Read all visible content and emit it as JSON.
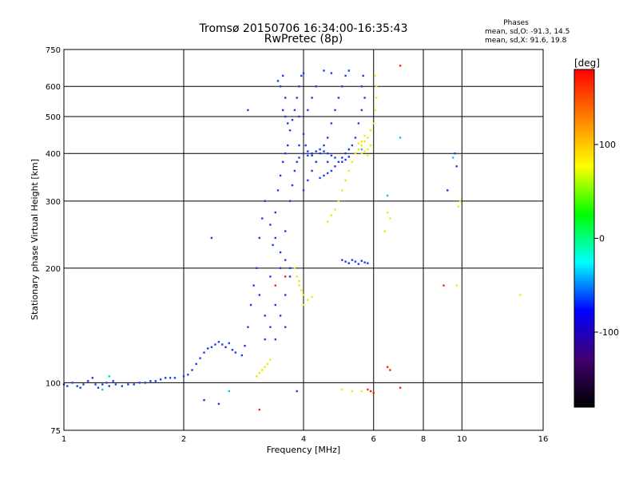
{
  "chart_data": {
    "type": "scatter",
    "title": "Tromsø 20150706 16:34:00-16:35:43",
    "subtitle": "RwPretec (8p)",
    "xlabel": "Frequency [MHz]",
    "ylabel": "Stationary phase Virtual Height [km]",
    "x_scale": "log",
    "y_scale": "log",
    "xlim": [
      1,
      16
    ],
    "ylim": [
      75,
      750
    ],
    "grid": true,
    "x_ticks": [
      1,
      2,
      4,
      6,
      8,
      10,
      16
    ],
    "y_ticks": [
      75,
      100,
      200,
      300,
      400,
      500,
      600,
      750
    ],
    "x_grid": [
      2,
      4,
      6,
      8,
      10
    ],
    "y_grid": [
      100,
      200,
      300,
      400,
      500,
      600
    ],
    "phase_stats": {
      "heading": "Phases",
      "o_line": "mean, sd,O: -91.3, 14.5",
      "x_line": "mean, sd,X:  91.6, 19.8"
    },
    "colorbar": {
      "label": "[deg]",
      "range": [
        -180,
        180
      ],
      "ticks": [
        100,
        0,
        -100
      ],
      "colors": [
        "#ff0000",
        "#ff8000",
        "#ffff00",
        "#00ff00",
        "#00ffff",
        "#0000ff",
        "#400070",
        "#000000"
      ]
    },
    "series": [
      {
        "phase": -91.3,
        "color": "#1a3cf0",
        "points": [
          [
            1.0,
            99
          ],
          [
            1.02,
            98
          ],
          [
            1.05,
            100
          ],
          [
            1.08,
            98
          ],
          [
            1.1,
            97
          ],
          [
            1.12,
            99
          ],
          [
            1.15,
            101
          ],
          [
            1.18,
            103
          ],
          [
            1.2,
            99
          ],
          [
            1.22,
            97
          ],
          [
            1.25,
            99
          ],
          [
            1.28,
            100
          ],
          [
            1.3,
            98
          ],
          [
            1.33,
            101
          ],
          [
            1.35,
            99
          ],
          [
            1.4,
            98
          ],
          [
            1.45,
            99
          ],
          [
            1.5,
            99
          ],
          [
            1.55,
            100
          ],
          [
            1.6,
            100
          ],
          [
            1.65,
            101
          ],
          [
            1.7,
            101
          ],
          [
            1.75,
            102
          ],
          [
            1.8,
            103
          ],
          [
            1.85,
            103
          ],
          [
            1.9,
            103
          ],
          [
            2.0,
            104
          ],
          [
            2.05,
            105
          ],
          [
            2.1,
            108
          ],
          [
            2.15,
            112
          ],
          [
            2.2,
            116
          ],
          [
            2.25,
            120
          ],
          [
            2.3,
            123
          ],
          [
            2.35,
            124
          ],
          [
            2.4,
            126
          ],
          [
            2.45,
            128
          ],
          [
            2.5,
            126
          ],
          [
            2.55,
            124
          ],
          [
            2.6,
            127
          ],
          [
            2.65,
            122
          ],
          [
            2.7,
            120
          ],
          [
            2.8,
            118
          ],
          [
            2.85,
            125
          ],
          [
            2.9,
            140
          ],
          [
            2.95,
            160
          ],
          [
            3.0,
            180
          ],
          [
            3.05,
            200
          ],
          [
            3.1,
            240
          ],
          [
            3.15,
            270
          ],
          [
            3.2,
            300
          ],
          [
            3.1,
            170
          ],
          [
            3.2,
            150
          ],
          [
            3.3,
            190
          ],
          [
            3.35,
            230
          ],
          [
            3.4,
            280
          ],
          [
            3.45,
            320
          ],
          [
            3.5,
            350
          ],
          [
            3.55,
            380
          ],
          [
            3.6,
            400
          ],
          [
            3.65,
            420
          ],
          [
            3.2,
            130
          ],
          [
            3.3,
            140
          ],
          [
            3.4,
            160
          ],
          [
            3.5,
            200
          ],
          [
            3.6,
            250
          ],
          [
            3.7,
            300
          ],
          [
            3.75,
            330
          ],
          [
            3.8,
            360
          ],
          [
            3.85,
            380
          ],
          [
            3.9,
            390
          ],
          [
            3.3,
            260
          ],
          [
            3.4,
            240
          ],
          [
            3.5,
            220
          ],
          [
            3.6,
            210
          ],
          [
            3.7,
            200
          ],
          [
            3.5,
            150
          ],
          [
            3.6,
            170
          ],
          [
            3.7,
            190
          ],
          [
            3.4,
            130
          ],
          [
            3.6,
            140
          ],
          [
            3.55,
            520
          ],
          [
            3.6,
            500
          ],
          [
            3.65,
            480
          ],
          [
            3.7,
            460
          ],
          [
            3.75,
            490
          ],
          [
            3.8,
            520
          ],
          [
            3.85,
            560
          ],
          [
            3.9,
            600
          ],
          [
            3.95,
            640
          ],
          [
            4.0,
            650
          ],
          [
            3.5,
            600
          ],
          [
            3.55,
            640
          ],
          [
            3.45,
            620
          ],
          [
            3.6,
            560
          ],
          [
            3.9,
            500
          ],
          [
            4.0,
            450
          ],
          [
            4.05,
            420
          ],
          [
            4.1,
            405
          ],
          [
            4.2,
            395
          ],
          [
            4.3,
            380
          ],
          [
            3.9,
            420
          ],
          [
            4.0,
            400
          ],
          [
            4.1,
            395
          ],
          [
            4.2,
            400
          ],
          [
            4.3,
            405
          ],
          [
            4.4,
            410
          ],
          [
            4.5,
            405
          ],
          [
            4.6,
            400
          ],
          [
            4.7,
            395
          ],
          [
            4.8,
            390
          ],
          [
            4.0,
            320
          ],
          [
            4.1,
            340
          ],
          [
            4.2,
            360
          ],
          [
            4.3,
            380
          ],
          [
            4.4,
            400
          ],
          [
            4.5,
            420
          ],
          [
            4.6,
            440
          ],
          [
            4.7,
            480
          ],
          [
            4.8,
            520
          ],
          [
            4.9,
            560
          ],
          [
            5.0,
            600
          ],
          [
            5.1,
            640
          ],
          [
            5.2,
            660
          ],
          [
            4.5,
            660
          ],
          [
            4.7,
            650
          ],
          [
            4.3,
            600
          ],
          [
            4.2,
            560
          ],
          [
            4.1,
            520
          ],
          [
            4.6,
            380
          ],
          [
            4.8,
            370
          ],
          [
            5.0,
            380
          ],
          [
            5.1,
            400
          ],
          [
            5.2,
            410
          ],
          [
            5.3,
            420
          ],
          [
            5.4,
            440
          ],
          [
            5.5,
            480
          ],
          [
            5.6,
            520
          ],
          [
            5.7,
            560
          ],
          [
            5.6,
            600
          ],
          [
            5.65,
            640
          ],
          [
            4.9,
            380
          ],
          [
            5.0,
            390
          ],
          [
            5.1,
            385
          ],
          [
            5.2,
            392
          ],
          [
            4.4,
            345
          ],
          [
            4.5,
            350
          ],
          [
            4.6,
            355
          ],
          [
            4.7,
            360
          ],
          [
            5.0,
            210
          ],
          [
            5.1,
            208
          ],
          [
            5.2,
            206
          ],
          [
            5.3,
            210
          ],
          [
            5.4,
            208
          ],
          [
            5.5,
            205
          ],
          [
            5.6,
            209
          ],
          [
            5.7,
            207
          ],
          [
            5.8,
            206
          ],
          [
            2.35,
            240
          ],
          [
            2.25,
            90
          ],
          [
            2.45,
            88
          ],
          [
            2.9,
            520
          ],
          [
            3.85,
            95
          ],
          [
            9.2,
            320
          ],
          [
            9.6,
            400
          ],
          [
            9.7,
            370
          ]
        ]
      },
      {
        "phase": 91.6,
        "color": "#f2e800",
        "points": [
          [
            3.05,
            104
          ],
          [
            3.1,
            106
          ],
          [
            3.15,
            108
          ],
          [
            3.2,
            110
          ],
          [
            3.25,
            112
          ],
          [
            3.3,
            115
          ],
          [
            3.8,
            200
          ],
          [
            3.85,
            190
          ],
          [
            3.9,
            180
          ],
          [
            3.95,
            175
          ],
          [
            4.0,
            170
          ],
          [
            4.1,
            165
          ],
          [
            4.2,
            168
          ],
          [
            4.0,
            160
          ],
          [
            3.9,
            185
          ],
          [
            4.6,
            265
          ],
          [
            4.7,
            275
          ],
          [
            4.8,
            285
          ],
          [
            4.9,
            300
          ],
          [
            5.0,
            320
          ],
          [
            5.1,
            340
          ],
          [
            5.2,
            360
          ],
          [
            5.3,
            380
          ],
          [
            5.4,
            400
          ],
          [
            5.5,
            410
          ],
          [
            5.6,
            420
          ],
          [
            5.7,
            430
          ],
          [
            5.8,
            440
          ],
          [
            5.9,
            460
          ],
          [
            6.0,
            480
          ],
          [
            6.05,
            520
          ],
          [
            6.1,
            560
          ],
          [
            6.1,
            600
          ],
          [
            6.05,
            640
          ],
          [
            5.6,
            400
          ],
          [
            5.7,
            405
          ],
          [
            5.8,
            410
          ],
          [
            5.9,
            420
          ],
          [
            5.6,
            430
          ],
          [
            5.7,
            445
          ],
          [
            5.5,
            425
          ],
          [
            5.8,
            395
          ],
          [
            6.5,
            280
          ],
          [
            6.6,
            270
          ],
          [
            6.4,
            250
          ],
          [
            5.0,
            96
          ],
          [
            5.3,
            95
          ],
          [
            5.6,
            95
          ],
          [
            9.8,
            290
          ],
          [
            9.9,
            300
          ],
          [
            9.7,
            180
          ],
          [
            14.0,
            170
          ]
        ]
      },
      {
        "phase": 170.0,
        "color": "#ff2200",
        "points": [
          [
            3.4,
            180
          ],
          [
            3.6,
            190
          ],
          [
            5.8,
            96
          ],
          [
            5.9,
            95
          ],
          [
            6.0,
            94
          ],
          [
            6.5,
            110
          ],
          [
            6.6,
            108
          ],
          [
            7.0,
            97
          ],
          [
            7.0,
            680
          ],
          [
            9.0,
            180
          ],
          [
            3.1,
            85
          ]
        ]
      },
      {
        "phase": -20.0,
        "color": "#00c8ff",
        "points": [
          [
            1.25,
            96
          ],
          [
            1.3,
            104
          ],
          [
            2.6,
            95
          ],
          [
            5.6,
            410
          ],
          [
            7.0,
            440
          ],
          [
            9.5,
            390
          ],
          [
            6.5,
            310
          ]
        ]
      }
    ]
  }
}
